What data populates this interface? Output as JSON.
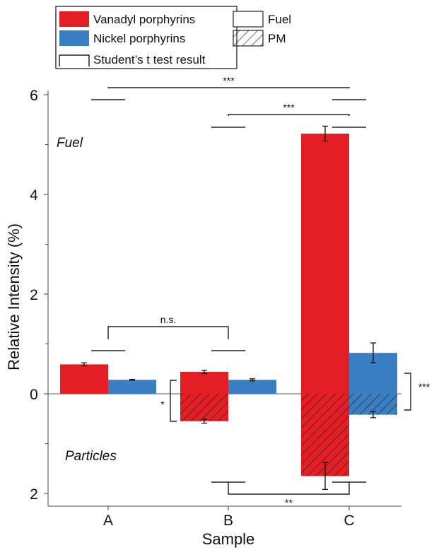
{
  "chart_data": {
    "type": "bar",
    "xlabel": "Sample",
    "ylabel": "Relative Intensity (%)",
    "categories": [
      "A",
      "B",
      "C"
    ],
    "yticks": [
      {
        "value": 6,
        "label": "6"
      },
      {
        "value": 4,
        "label": "4"
      },
      {
        "value": 2,
        "label": "2"
      },
      {
        "value": 0,
        "label": "0"
      },
      {
        "value": -2,
        "label": "2"
      }
    ],
    "ylim": [
      -2.3,
      6.2
    ],
    "regions": {
      "upper": "Fuel",
      "lower": "Particles"
    },
    "legend": {
      "placement": "top-left",
      "entries": [
        {
          "label": "Vanadyl porphyrins",
          "style": "solid",
          "color": "#e31e24"
        },
        {
          "label": "Fuel",
          "style": "open"
        },
        {
          "label": "Nickel porphyrins",
          "style": "solid",
          "color": "#3a7fc1"
        },
        {
          "label": "PM",
          "style": "hatched"
        },
        {
          "label": "Student’s t test result",
          "style": "bracket"
        }
      ]
    },
    "series": [
      {
        "name": "Vanadyl porphyrins",
        "medium": "Fuel",
        "color": "#e31e24",
        "values": [
          0.59,
          0.44,
          5.22
        ],
        "errors": [
          0.03,
          0.03,
          0.15
        ]
      },
      {
        "name": "Nickel porphyrins",
        "medium": "Fuel",
        "color": "#3a7fc1",
        "values": [
          0.28,
          0.28,
          0.82
        ],
        "errors": [
          0.01,
          0.02,
          0.2
        ]
      },
      {
        "name": "Vanadyl porphyrins",
        "medium": "PM",
        "color": "#e31e24",
        "values": [
          null,
          -0.55,
          -1.65
        ],
        "errors": [
          null,
          0.04,
          0.27
        ]
      },
      {
        "name": "Nickel porphyrins",
        "medium": "PM",
        "color": "#3a7fc1",
        "values": [
          null,
          null,
          -0.42
        ],
        "errors": [
          null,
          null,
          0.06
        ]
      }
    ],
    "significance": [
      {
        "label": "***",
        "from": "A",
        "to": "C",
        "medium": "Fuel"
      },
      {
        "label": "***",
        "from": "B",
        "to": "C",
        "medium": "Fuel"
      },
      {
        "label": "n.s.",
        "from": "A",
        "to": "B",
        "medium": "Fuel"
      },
      {
        "label": "**",
        "from": "B",
        "to": "C",
        "medium": "PM"
      },
      {
        "label": "*",
        "sample": "B",
        "compare": "Fuel vs PM"
      },
      {
        "label": "***",
        "sample": "C",
        "compare": "Fuel vs PM"
      }
    ],
    "grid": false
  }
}
